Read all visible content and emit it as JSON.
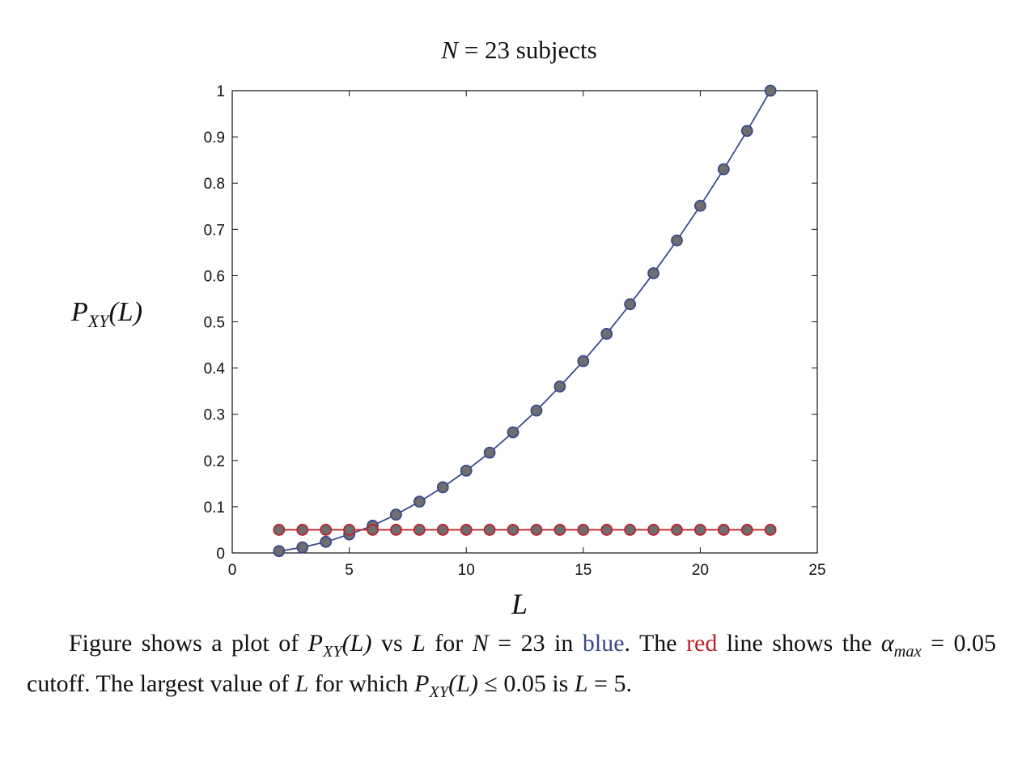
{
  "chart_data": {
    "type": "line",
    "title": "N = 23 subjects",
    "xlabel": "L",
    "ylabel": "P_XY(L)",
    "xlim": [
      0,
      25
    ],
    "ylim": [
      0,
      1
    ],
    "xticks": [
      0,
      5,
      10,
      15,
      20,
      25
    ],
    "yticks": [
      0,
      0.1,
      0.2,
      0.3,
      0.4,
      0.5,
      0.6,
      0.7,
      0.8,
      0.9,
      1
    ],
    "grid": false,
    "marker": "circle",
    "marker_fill": "#6e6e6e",
    "x": [
      2,
      3,
      4,
      5,
      6,
      7,
      8,
      9,
      10,
      11,
      12,
      13,
      14,
      15,
      16,
      17,
      18,
      19,
      20,
      21,
      22,
      23
    ],
    "series": [
      {
        "color": "#3a4a8c",
        "values": [
          0.004,
          0.012,
          0.024,
          0.04,
          0.059,
          0.083,
          0.111,
          0.142,
          0.178,
          0.217,
          0.261,
          0.308,
          0.36,
          0.415,
          0.474,
          0.538,
          0.605,
          0.676,
          0.751,
          0.83,
          0.913,
          1.0
        ]
      },
      {
        "color": "#c0202a",
        "values": [
          0.05,
          0.05,
          0.05,
          0.05,
          0.05,
          0.05,
          0.05,
          0.05,
          0.05,
          0.05,
          0.05,
          0.05,
          0.05,
          0.05,
          0.05,
          0.05,
          0.05,
          0.05,
          0.05,
          0.05,
          0.05,
          0.05
        ]
      }
    ]
  },
  "labels": {
    "title_var": "N",
    "title_rest": " = 23 subjects",
    "ylabel_p": "P",
    "ylabel_sub": "XY",
    "ylabel_arg": "(L)",
    "xlabel": "L"
  },
  "caption": {
    "t1": "Figure shows a plot of ",
    "p": "P",
    "sub": "XY",
    "arg": "(L)",
    "t2": " vs ",
    "L": "L",
    "t3": " for ",
    "N": "N",
    "t4": " = 23 in ",
    "blue": "blue",
    "t5": ". The ",
    "red": "red",
    "t6": " line shows the ",
    "alpha": "α",
    "alpha_sub": "max",
    "t7": " = 0.05 cutoff.  The largest value of ",
    "t8": " for which ",
    "t9": " ≤ 0.05 is ",
    "t10": " = 5."
  }
}
